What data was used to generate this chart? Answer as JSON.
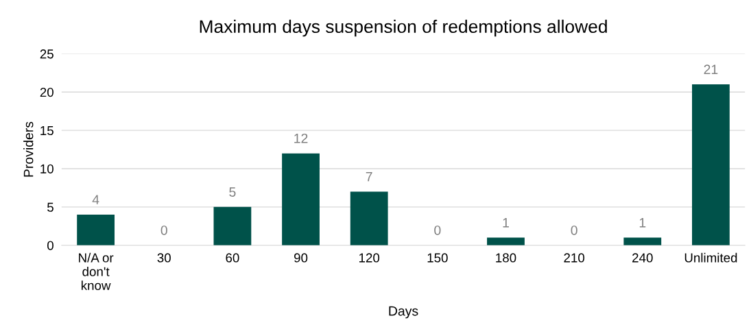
{
  "chart_data": {
    "type": "bar",
    "title": "Maximum days suspension of redemptions allowed",
    "xlabel": "Days",
    "ylabel": "Providers",
    "categories": [
      "N/A or\ndon't\nknow",
      "30",
      "60",
      "90",
      "120",
      "150",
      "180",
      "210",
      "240",
      "Unlimited"
    ],
    "values": [
      4,
      0,
      5,
      12,
      7,
      0,
      1,
      0,
      1,
      21
    ],
    "color": "#00524a",
    "ylim": [
      0,
      25
    ],
    "yticks": [
      0,
      5,
      10,
      15,
      20,
      25
    ],
    "grid": "y",
    "data_labels": true,
    "legend": false
  }
}
